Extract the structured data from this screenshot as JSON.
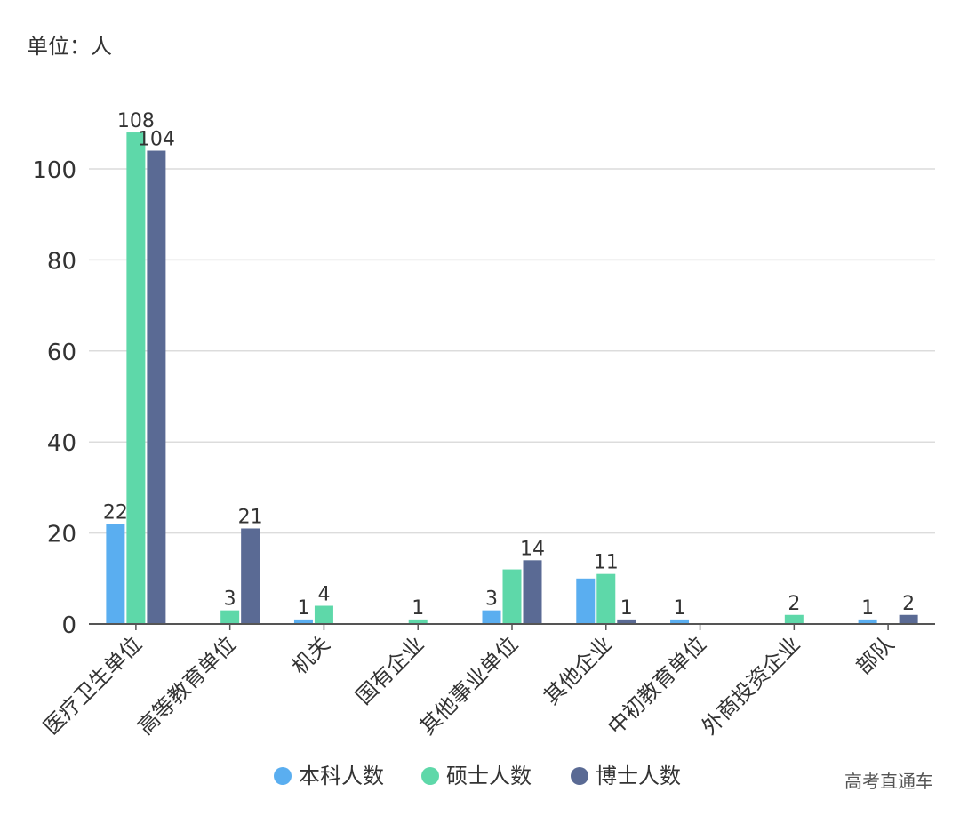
{
  "unit_label": "单位：人",
  "watermark": "高考直通车",
  "chart_data": {
    "type": "bar",
    "categories": [
      "医疗卫生单位",
      "高等教育单位",
      "机关",
      "国有企业",
      "其他事业单位",
      "其他企业",
      "中初教育单位",
      "外商投资企业",
      "部队"
    ],
    "series": [
      {
        "name": "本科人数",
        "color": "#5aaef0",
        "values": [
          22,
          0,
          1,
          0,
          3,
          10,
          1,
          0,
          1
        ],
        "labels": [
          "22",
          "",
          "1",
          "",
          "3",
          "",
          "1",
          "",
          "1"
        ]
      },
      {
        "name": "硕士人数",
        "color": "#5ed8a9",
        "values": [
          108,
          3,
          4,
          1,
          12,
          11,
          0,
          2,
          0
        ],
        "labels": [
          "108",
          "3",
          "4",
          "1",
          "",
          "11",
          "",
          "2",
          ""
        ]
      },
      {
        "name": "博士人数",
        "color": "#5a6a94",
        "values": [
          104,
          21,
          0,
          0,
          14,
          1,
          0,
          0,
          2
        ],
        "labels": [
          "104",
          "21",
          "",
          "",
          "14",
          "1",
          "",
          "",
          "2"
        ]
      }
    ],
    "ylim": [
      0,
      110
    ],
    "yticks": [
      "0",
      "20",
      "40",
      "60",
      "80",
      "100"
    ],
    "grid": true,
    "legend_position": "bottom"
  }
}
